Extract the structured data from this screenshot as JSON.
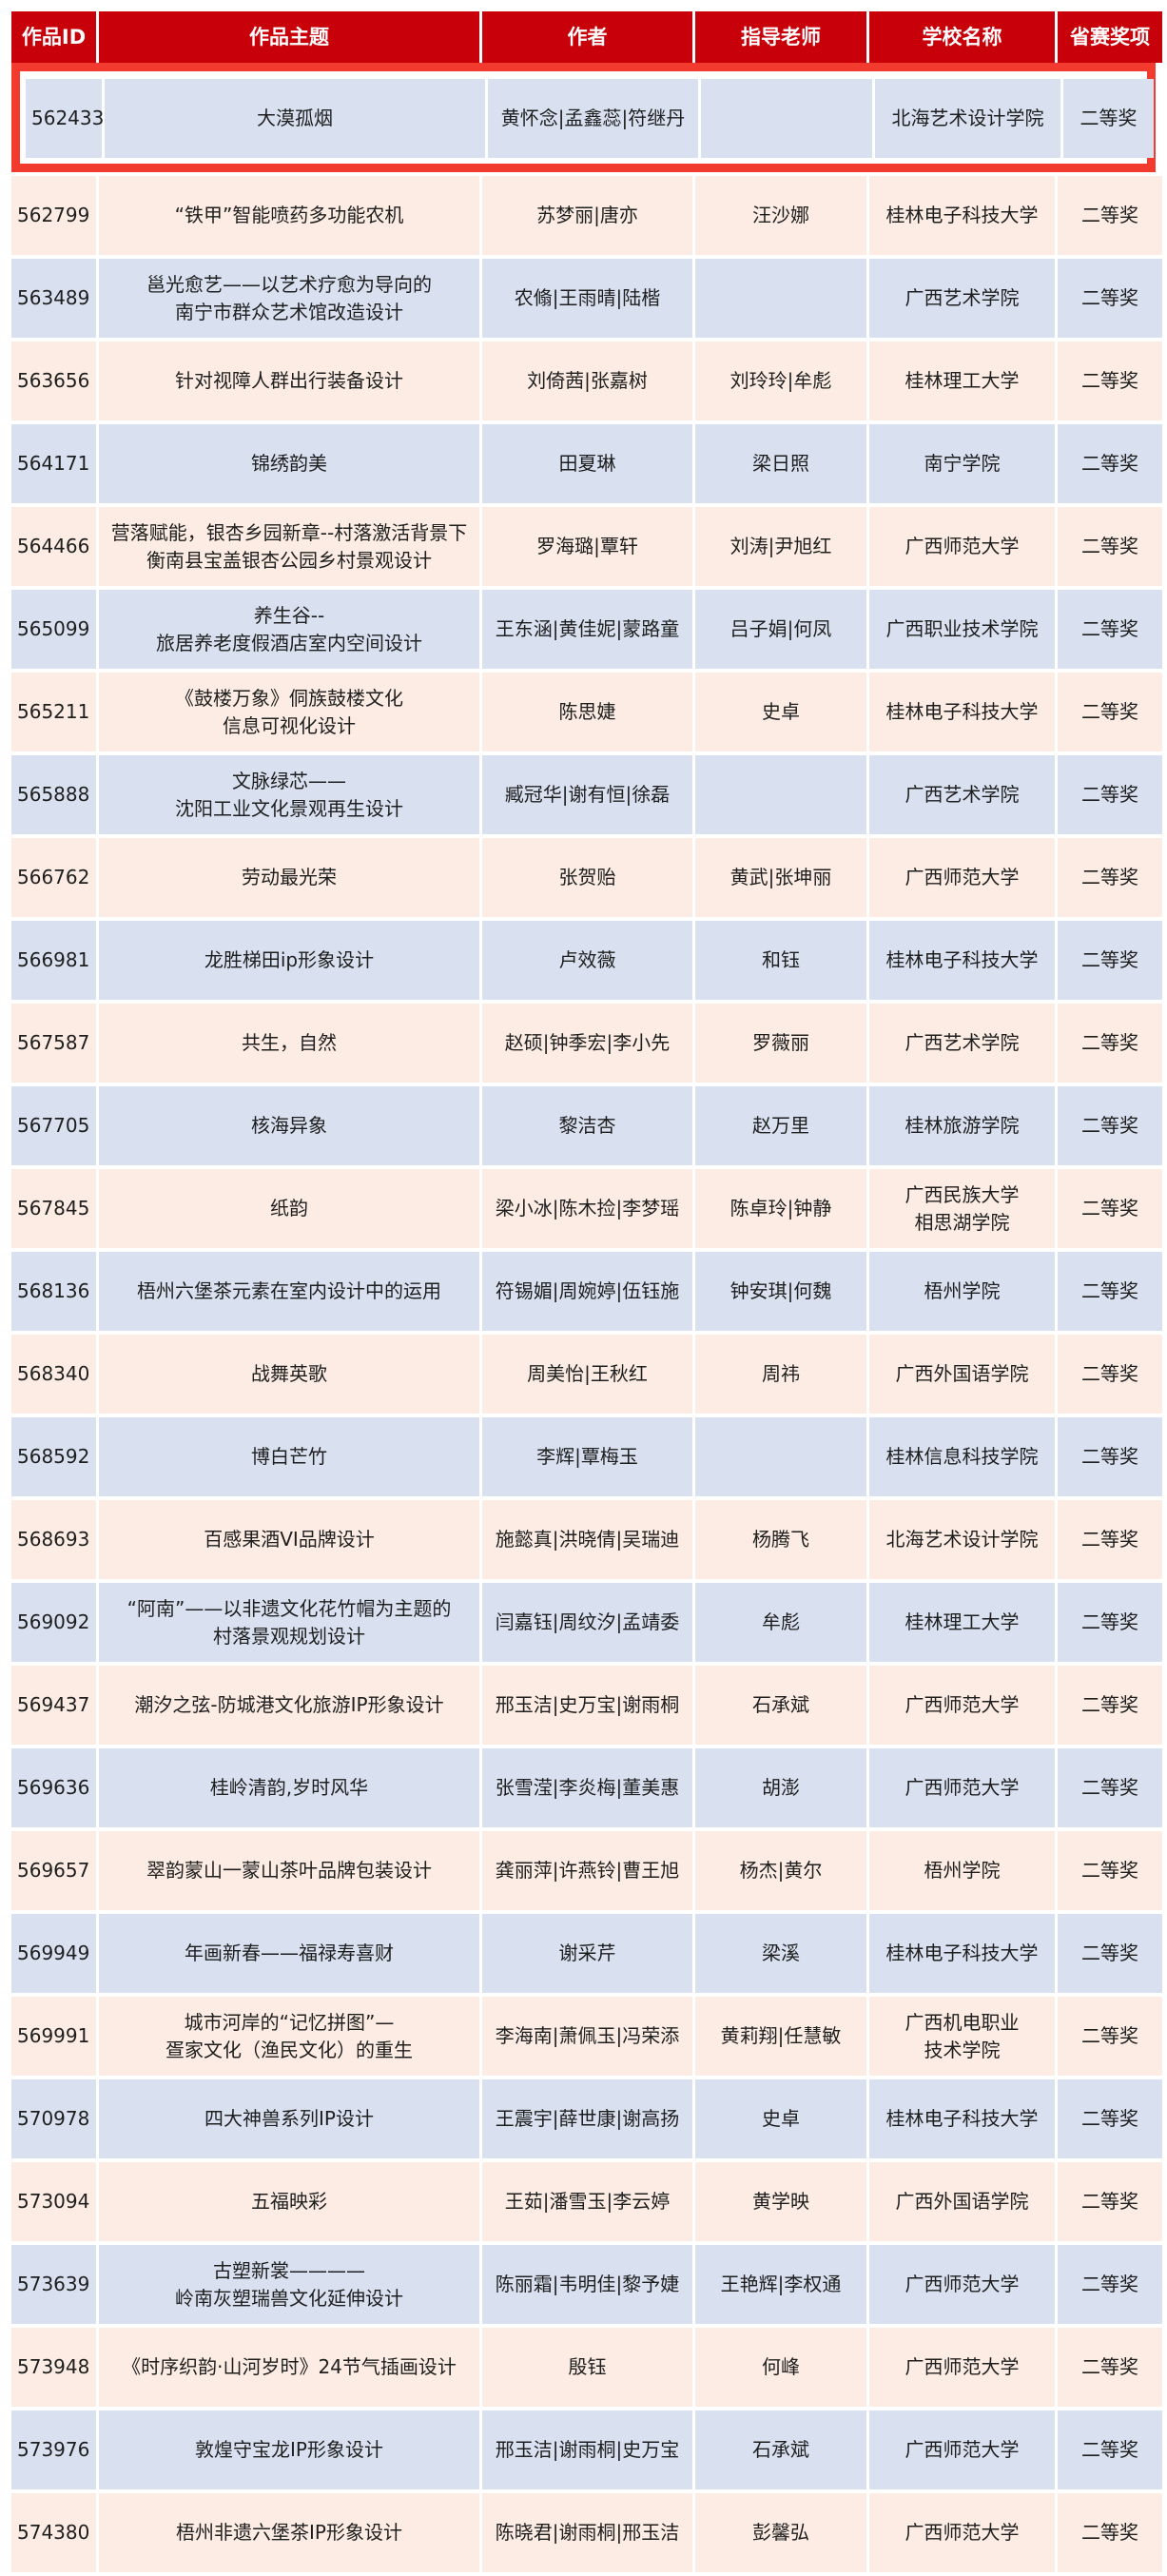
{
  "colors": {
    "header": "#c8000a",
    "highlight_border": "#f23a2f",
    "row_blue": "#d9e1f1",
    "row_peach": "#fcece3"
  },
  "headers": [
    "作品ID",
    "作品主题",
    "作者",
    "指导老师",
    "学校名称",
    "省赛奖项"
  ],
  "rows": [
    [
      "562433",
      "大漠孤烟",
      "黄怀念|孟鑫蕊|符继丹",
      "",
      "北海艺术设计学院",
      "二等奖"
    ],
    [
      "562799",
      "“铁甲”智能喷药多功能农机",
      "苏梦丽|唐亦",
      "汪沙娜",
      "桂林电子科技大学",
      "二等奖"
    ],
    [
      "563489",
      "邕光愈艺——以艺术疗愈为导向的\n南宁市群众艺术馆改造设计",
      "农翛|王雨晴|陆楷",
      "",
      "广西艺术学院",
      "二等奖"
    ],
    [
      "563656",
      "针对视障人群出行装备设计",
      "刘倚茜|张嘉树",
      "刘玲玲|牟彪",
      "桂林理工大学",
      "二等奖"
    ],
    [
      "564171",
      "锦绣韵美",
      "田夏琳",
      "梁日照",
      "南宁学院",
      "二等奖"
    ],
    [
      "564466",
      "营落赋能，银杏乡园新章--村落激活背景下\n衡南县宝盖银杏公园乡村景观设计",
      "罗海璐|覃轩",
      "刘涛|尹旭红",
      "广西师范大学",
      "二等奖"
    ],
    [
      "565099",
      "养生谷--\n旅居养老度假酒店室内空间设计",
      "王东涵|黄佳妮|蒙路童",
      "吕子娟|何凤",
      "广西职业技术学院",
      "二等奖"
    ],
    [
      "565211",
      "《鼓楼万象》侗族鼓楼文化\n信息可视化设计",
      "陈思婕",
      "史卓",
      "桂林电子科技大学",
      "二等奖"
    ],
    [
      "565888",
      "文脉绿芯——\n沈阳工业文化景观再生设计",
      "臧冠华|谢有恒|徐磊",
      "",
      "广西艺术学院",
      "二等奖"
    ],
    [
      "566762",
      "劳动最光荣",
      "张贺贻",
      "黄武|张坤丽",
      "广西师范大学",
      "二等奖"
    ],
    [
      "566981",
      "龙胜梯田ip形象设计",
      "卢效薇",
      "和钰",
      "桂林电子科技大学",
      "二等奖"
    ],
    [
      "567587",
      "共生，自然",
      "赵硕|钟季宏|李小先",
      "罗薇丽",
      "广西艺术学院",
      "二等奖"
    ],
    [
      "567705",
      "核海异象",
      "黎洁杏",
      "赵万里",
      "桂林旅游学院",
      "二等奖"
    ],
    [
      "567845",
      "纸韵",
      "梁小冰|陈木捡|李梦瑶",
      "陈卓玲|钟静",
      "广西民族大学\n相思湖学院",
      "二等奖"
    ],
    [
      "568136",
      "梧州六堡茶元素在室内设计中的运用",
      "符锡媚|周婉婷|伍钰施",
      "钟安琪|何魏",
      "梧州学院",
      "二等奖"
    ],
    [
      "568340",
      "战舞英歌",
      "周美怡|王秋红",
      "周祎",
      "广西外国语学院",
      "二等奖"
    ],
    [
      "568592",
      "博白芒竹",
      "李辉|覃梅玉",
      "",
      "桂林信息科技学院",
      "二等奖"
    ],
    [
      "568693",
      "百感果酒VI品牌设计",
      "施懿真|洪晓倩|吴瑞迪",
      "杨腾飞",
      "北海艺术设计学院",
      "二等奖"
    ],
    [
      "569092",
      "“阿南”——以非遗文化花竹帽为主题的\n村落景观规划设计",
      "闫嘉钰|周纹汐|孟靖委",
      "牟彪",
      "桂林理工大学",
      "二等奖"
    ],
    [
      "569437",
      "潮汐之弦-防城港文化旅游IP形象设计",
      "邢玉洁|史万宝|谢雨桐",
      "石承斌",
      "广西师范大学",
      "二等奖"
    ],
    [
      "569636",
      "桂岭清韵,岁时风华",
      "张雪滢|李炎梅|董美惠",
      "胡澎",
      "广西师范大学",
      "二等奖"
    ],
    [
      "569657",
      "翠韵蒙山一蒙山茶叶品牌包装设计",
      "龚丽萍|许燕铃|曹王旭",
      "杨杰|黄尔",
      "梧州学院",
      "二等奖"
    ],
    [
      "569949",
      "年画新春——福禄寿喜财",
      "谢采芹",
      "梁溪",
      "桂林电子科技大学",
      "二等奖"
    ],
    [
      "569991",
      "城市河岸的“记忆拼图”—\n疍家文化（渔民文化）的重生",
      "李海南|萧佩玉|冯荣添",
      "黄莉翔|任慧敏",
      "广西机电职业\n技术学院",
      "二等奖"
    ],
    [
      "570978",
      "四大神兽系列IP设计",
      "王震宇|薛世康|谢高扬",
      "史卓",
      "桂林电子科技大学",
      "二等奖"
    ],
    [
      "573094",
      "五福映彩",
      "王茹|潘雪玉|李云婷",
      "黄学映",
      "广西外国语学院",
      "二等奖"
    ],
    [
      "573639",
      "古塑新裳————\n岭南灰塑瑞兽文化延伸设计",
      "陈丽霜|韦明佳|黎予婕",
      "王艳辉|李权通",
      "广西师范大学",
      "二等奖"
    ],
    [
      "573948",
      "《时序织韵·山河岁时》24节气插画设计",
      "殷钰",
      "何峰",
      "广西师范大学",
      "二等奖"
    ],
    [
      "573976",
      "敦煌守宝龙IP形象设计",
      "邢玉洁|谢雨桐|史万宝",
      "石承斌",
      "广西师范大学",
      "二等奖"
    ],
    [
      "574380",
      "梧州非遗六堡茶IP形象设计",
      "陈晓君|谢雨桐|邢玉洁",
      "彭馨弘",
      "广西师范大学",
      "二等奖"
    ]
  ]
}
